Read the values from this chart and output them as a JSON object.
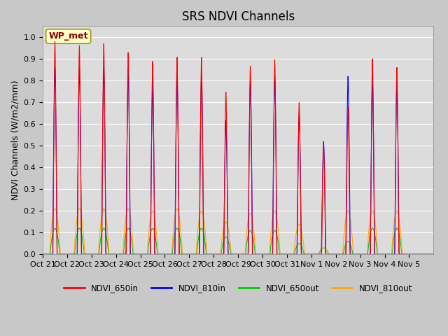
{
  "title": "SRS NDVI Channels",
  "ylabel": "NDVI Channels (W/m2/mm)",
  "xlabel": "",
  "site_label": "WP_met",
  "ylim": [
    0.0,
    1.05
  ],
  "yticks": [
    0.0,
    0.1,
    0.2,
    0.3,
    0.4,
    0.5,
    0.6,
    0.7,
    0.8,
    0.9,
    1.0
  ],
  "date_labels": [
    "Oct 21",
    "Oct 22",
    "Oct 23",
    "Oct 24",
    "Oct 25",
    "Oct 26",
    "Oct 27",
    "Oct 28",
    "Oct 29",
    "Oct 30",
    "Oct 31",
    "Nov 1",
    "Nov 2",
    "Nov 3",
    "Nov 4",
    "Nov 5"
  ],
  "colors": {
    "NDVI_650in": "#ff0000",
    "NDVI_810in": "#0000ff",
    "NDVI_650out": "#00cc00",
    "NDVI_810out": "#ffaa00"
  },
  "peak_650in": [
    0.98,
    0.96,
    0.97,
    0.93,
    0.89,
    0.91,
    0.91,
    0.75,
    0.87,
    0.9,
    0.7,
    0.51,
    0.68,
    0.9,
    0.86,
    0.0
  ],
  "peak_810in": [
    0.86,
    0.86,
    0.86,
    0.85,
    0.8,
    0.83,
    0.83,
    0.62,
    0.8,
    0.82,
    0.65,
    0.52,
    0.82,
    0.82,
    0.8,
    0.0
  ],
  "peak_650out": [
    0.12,
    0.12,
    0.12,
    0.12,
    0.12,
    0.12,
    0.12,
    0.08,
    0.11,
    0.11,
    0.05,
    0.03,
    0.06,
    0.12,
    0.12,
    0.0
  ],
  "peak_810out": [
    0.21,
    0.21,
    0.21,
    0.21,
    0.2,
    0.21,
    0.2,
    0.15,
    0.19,
    0.2,
    0.14,
    0.03,
    0.2,
    0.2,
    0.2,
    0.0
  ],
  "n_days": 16,
  "pts_per_day": 200,
  "background_color": "#dcdcdc",
  "grid_color": "#ffffff",
  "title_fontsize": 12,
  "label_fontsize": 9,
  "tick_fontsize": 8
}
